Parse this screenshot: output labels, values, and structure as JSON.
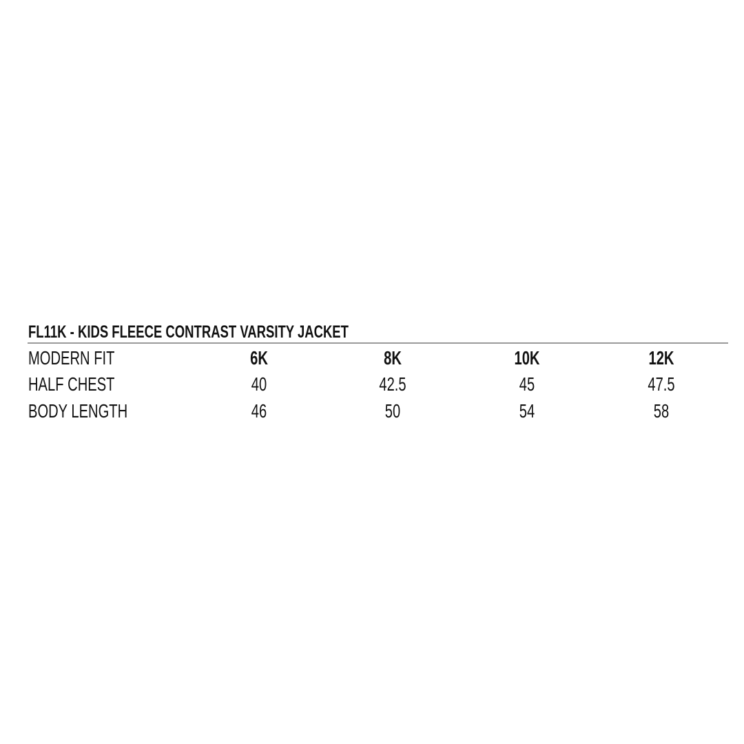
{
  "title": "FL11K - KIDS FLEECE CONTRAST VARSITY JACKET",
  "table": {
    "header": {
      "label": "MODERN FIT",
      "sizes": [
        "6K",
        "8K",
        "10K",
        "12K"
      ]
    },
    "rows": [
      {
        "label": "HALF CHEST",
        "values": [
          "40",
          "42.5",
          "45",
          "47.5"
        ]
      },
      {
        "label": "BODY LENGTH",
        "values": [
          "46",
          "50",
          "54",
          "58"
        ]
      }
    ]
  }
}
